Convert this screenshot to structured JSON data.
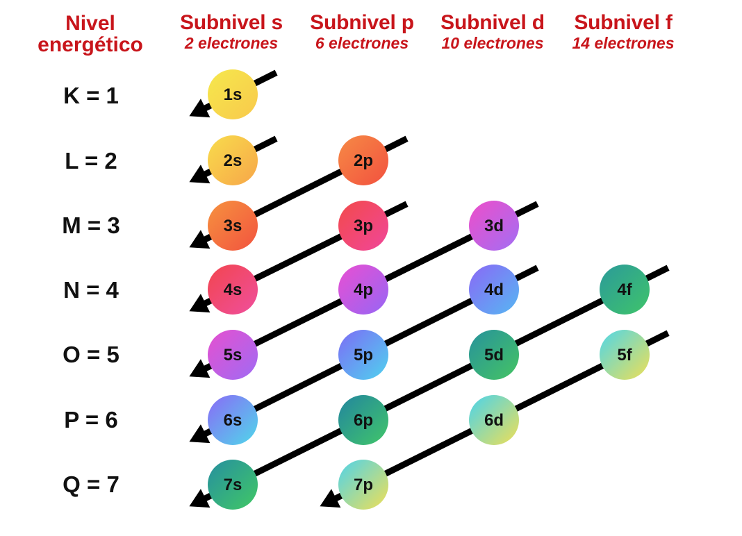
{
  "headers": {
    "level": [
      "Nivel",
      "energético"
    ],
    "subshells": [
      {
        "title": "Subnivel s",
        "capacity": "2 electrones"
      },
      {
        "title": "Subnivel p",
        "capacity": "6 electrones"
      },
      {
        "title": "Subnivel d",
        "capacity": "10 electrones"
      },
      {
        "title": "Subnivel f",
        "capacity": "14 electrones"
      }
    ]
  },
  "levels": [
    "K = 1",
    "L = 2",
    "M = 3",
    "N = 4",
    "O = 5",
    "P = 6",
    "Q = 7"
  ],
  "orbitals": [
    {
      "label": "1s",
      "row": 0,
      "col": 0,
      "colors": [
        "#f6e84d",
        "#f8c94b"
      ]
    },
    {
      "label": "2s",
      "row": 1,
      "col": 0,
      "colors": [
        "#f8dc4c",
        "#f7a649"
      ]
    },
    {
      "label": "2p",
      "row": 1,
      "col": 1,
      "colors": [
        "#f68a45",
        "#f2513f"
      ]
    },
    {
      "label": "3s",
      "row": 2,
      "col": 0,
      "colors": [
        "#f6923f",
        "#f2533f"
      ]
    },
    {
      "label": "3p",
      "row": 2,
      "col": 1,
      "colors": [
        "#f34a4a",
        "#f0469a"
      ]
    },
    {
      "label": "3d",
      "row": 2,
      "col": 2,
      "colors": [
        "#ee4ec9",
        "#a26ef4"
      ]
    },
    {
      "label": "4s",
      "row": 3,
      "col": 0,
      "colors": [
        "#f2454e",
        "#ef4f9d"
      ]
    },
    {
      "label": "4p",
      "row": 3,
      "col": 1,
      "colors": [
        "#e94fd2",
        "#9666f5"
      ]
    },
    {
      "label": "4d",
      "row": 3,
      "col": 2,
      "colors": [
        "#8a68f6",
        "#56b7f2"
      ]
    },
    {
      "label": "4f",
      "row": 3,
      "col": 3,
      "colors": [
        "#2b9a9a",
        "#3fc46a"
      ]
    },
    {
      "label": "5s",
      "row": 4,
      "col": 0,
      "colors": [
        "#e650cf",
        "#9f6bf4"
      ]
    },
    {
      "label": "5p",
      "row": 4,
      "col": 1,
      "colors": [
        "#7d6cf6",
        "#4fd2ee"
      ]
    },
    {
      "label": "5d",
      "row": 4,
      "col": 2,
      "colors": [
        "#27929c",
        "#45c463"
      ]
    },
    {
      "label": "5f",
      "row": 4,
      "col": 3,
      "colors": [
        "#4fd6e8",
        "#eedf55"
      ]
    },
    {
      "label": "6s",
      "row": 5,
      "col": 0,
      "colors": [
        "#8a6af6",
        "#4fd8ea"
      ]
    },
    {
      "label": "6p",
      "row": 5,
      "col": 1,
      "colors": [
        "#22859f",
        "#41c669"
      ]
    },
    {
      "label": "6d",
      "row": 5,
      "col": 2,
      "colors": [
        "#49d3ec",
        "#efdf55"
      ]
    },
    {
      "label": "7s",
      "row": 6,
      "col": 0,
      "colors": [
        "#268fa0",
        "#41c865"
      ]
    },
    {
      "label": "7p",
      "row": 6,
      "col": 1,
      "colors": [
        "#4fd3ea",
        "#f0df55"
      ]
    }
  ],
  "colors": {
    "header": "#c8151b",
    "arrow": "#000000",
    "text": "#111111"
  }
}
